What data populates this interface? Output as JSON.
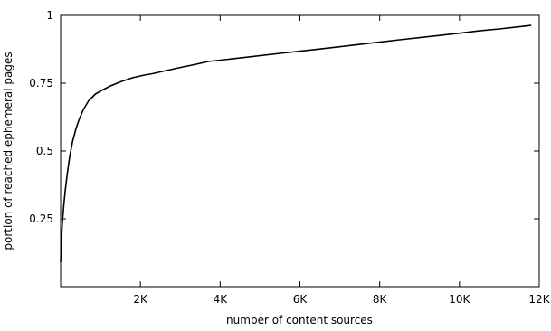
{
  "chart_data": {
    "type": "line",
    "title": "",
    "xlabel": "number of content sources",
    "ylabel": "portion of reached ephemeral pages",
    "xlim": [
      0,
      12000
    ],
    "ylim": [
      0,
      1
    ],
    "grid": false,
    "legend": "none",
    "x_ticks": [
      {
        "value": 2000,
        "label": "2K"
      },
      {
        "value": 4000,
        "label": "4K"
      },
      {
        "value": 6000,
        "label": "6K"
      },
      {
        "value": 8000,
        "label": "8K"
      },
      {
        "value": 10000,
        "label": "10K"
      },
      {
        "value": 12000,
        "label": "12K"
      }
    ],
    "y_ticks": [
      {
        "value": 0.25,
        "label": "0.25"
      },
      {
        "value": 0.5,
        "label": "0.5"
      },
      {
        "value": 0.75,
        "label": "0.75"
      },
      {
        "value": 1,
        "label": "1"
      }
    ],
    "series": [
      {
        "color": "#000000",
        "x": [
          0,
          15,
          40,
          80,
          120,
          170,
          230,
          300,
          380,
          460,
          560,
          700,
          870,
          1050,
          1250,
          1500,
          1800,
          2100,
          2300,
          2600,
          3000,
          3400,
          3700,
          4500,
          5500,
          6500,
          7500,
          8500,
          9500,
          10500,
          11000,
          11500,
          11800
        ],
        "y": [
          0.09,
          0.16,
          0.23,
          0.3,
          0.36,
          0.42,
          0.48,
          0.535,
          0.58,
          0.615,
          0.65,
          0.685,
          0.71,
          0.725,
          0.74,
          0.755,
          0.77,
          0.78,
          0.785,
          0.795,
          0.808,
          0.82,
          0.83,
          0.843,
          0.86,
          0.876,
          0.893,
          0.91,
          0.926,
          0.943,
          0.95,
          0.958,
          0.963
        ]
      }
    ]
  }
}
